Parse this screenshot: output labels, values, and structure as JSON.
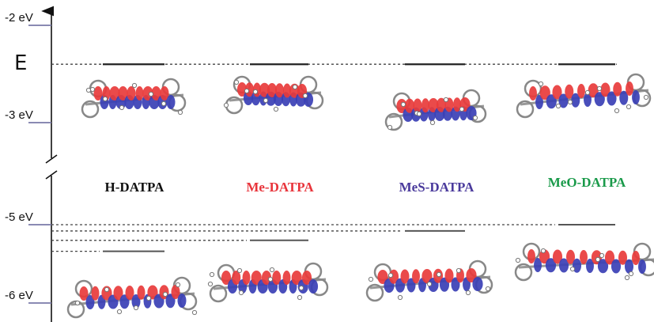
{
  "axis": {
    "symbol": "E",
    "ticks": [
      {
        "label": "-2 eV",
        "value": -2,
        "segment": "upper"
      },
      {
        "label": "-3 eV",
        "value": -3,
        "segment": "upper"
      },
      {
        "label": "-5 eV",
        "value": -5,
        "segment": "lower"
      },
      {
        "label": "-6 eV",
        "value": -6,
        "segment": "lower"
      }
    ]
  },
  "molecules": [
    {
      "name": "H-DATPA",
      "color": "#111111",
      "lumo": -2.4,
      "homo": -5.34
    },
    {
      "name": "Me-DATPA",
      "color": "#e8343b",
      "lumo": -2.4,
      "homo": -5.2
    },
    {
      "name": "MeS-DATPA",
      "color": "#4a3a9c",
      "lumo": -2.4,
      "homo": -5.08
    },
    {
      "name": "MeO-DATPA",
      "color": "#1a9a4a",
      "lumo": -2.4,
      "homo": -5.0
    }
  ],
  "colors": {
    "orbital_positive": "#e83b3b",
    "orbital_negative": "#3a3fb5",
    "level_line": "#222222",
    "tick_accent": "#7a7aa8"
  }
}
